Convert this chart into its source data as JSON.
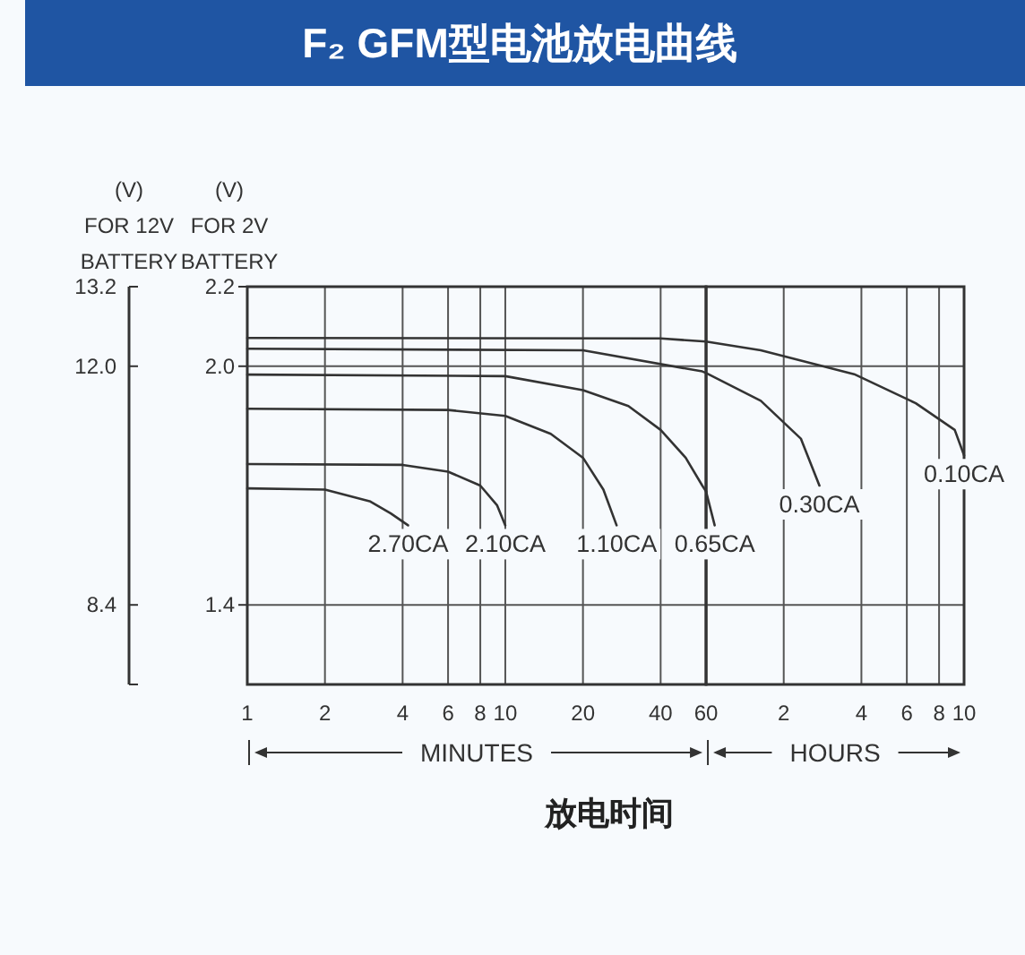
{
  "chart_data": [
    {
      "type": "line",
      "title": "F₂ GFM型电池放电曲线",
      "xlabel": "放电时间",
      "ylabel": "(V)\nFOR 2V\nBATTERY",
      "y2label": "(V)\nFOR 12V\nBATTERY",
      "log": "x",
      "grid": true,
      "marker": "none",
      "line_style": "solid",
      "xlim": [
        1,
        60
      ],
      "xticks": [
        1,
        2,
        4,
        6,
        8,
        10,
        20,
        40,
        60
      ],
      "ylim": [
        1.2,
        2.2
      ],
      "yticks": [
        2.2,
        {
          "value": 2,
          "label": "2.0"
        },
        1.4
      ],
      "y2lim": [
        7.2,
        13.2
      ],
      "y2ticks": [
        13.2,
        {
          "value": 12,
          "label": "12.0"
        },
        8.4
      ],
      "annotations": [
        "MINUTES"
      ],
      "series": [
        {
          "name": "2.70CA",
          "color": "#333333",
          "x": [
            1,
            2,
            3,
            3.6,
            4.2
          ],
          "values": [
            1.693,
            1.69,
            1.66,
            1.63,
            1.6
          ]
        },
        {
          "name": "2.10CA",
          "color": "#333333",
          "x": [
            1,
            4,
            6,
            8,
            9.3,
            10
          ],
          "values": [
            1.754,
            1.752,
            1.735,
            1.7,
            1.65,
            1.6
          ]
        },
        {
          "name": "1.10CA",
          "color": "#333333",
          "x": [
            1,
            6,
            10,
            15,
            20,
            24,
            27
          ],
          "values": [
            1.893,
            1.89,
            1.875,
            1.83,
            1.77,
            1.69,
            1.6
          ]
        },
        {
          "color": "#333333",
          "x": [
            1,
            10,
            20,
            30,
            40,
            50,
            58,
            60
          ],
          "values": [
            1.979,
            1.975,
            1.94,
            1.9,
            1.84,
            1.77,
            1.7,
            1.685
          ]
        },
        {
          "color": "#333333",
          "x": [
            1,
            20,
            58,
            60
          ],
          "values": [
            2.044,
            2.04,
            1.987,
            1.983
          ]
        },
        {
          "color": "#333333",
          "x": [
            1,
            40,
            60
          ],
          "values": [
            2.071,
            2.07,
            2.062
          ]
        }
      ]
    },
    {
      "type": "line",
      "log": "x",
      "grid": true,
      "marker": "none",
      "line_style": "solid",
      "tick_labels": "x",
      "xlim": [
        1,
        10
      ],
      "xticks": [
        2,
        4,
        6,
        8,
        10
      ],
      "ylim": [
        1.2,
        2.2
      ],
      "yticks": [
        2.2,
        2,
        1.4
      ],
      "annotations": [
        "HOURS"
      ],
      "series": [
        {
          "name": "0.65CA",
          "color": "#333333",
          "x": [
            1,
            1.08
          ],
          "values": [
            1.685,
            1.6
          ]
        },
        {
          "name": "0.30CA",
          "color": "#333333",
          "x": [
            1,
            1.63,
            2.33,
            2.75
          ],
          "values": [
            1.983,
            1.913,
            1.818,
            1.7
          ]
        },
        {
          "name": "0.10CA",
          "color": "#333333",
          "x": [
            1,
            1.63,
            3.75,
            6.5,
            9.2,
            10
          ],
          "values": [
            2.062,
            2.04,
            1.98,
            1.907,
            1.84,
            1.776
          ]
        }
      ]
    }
  ]
}
